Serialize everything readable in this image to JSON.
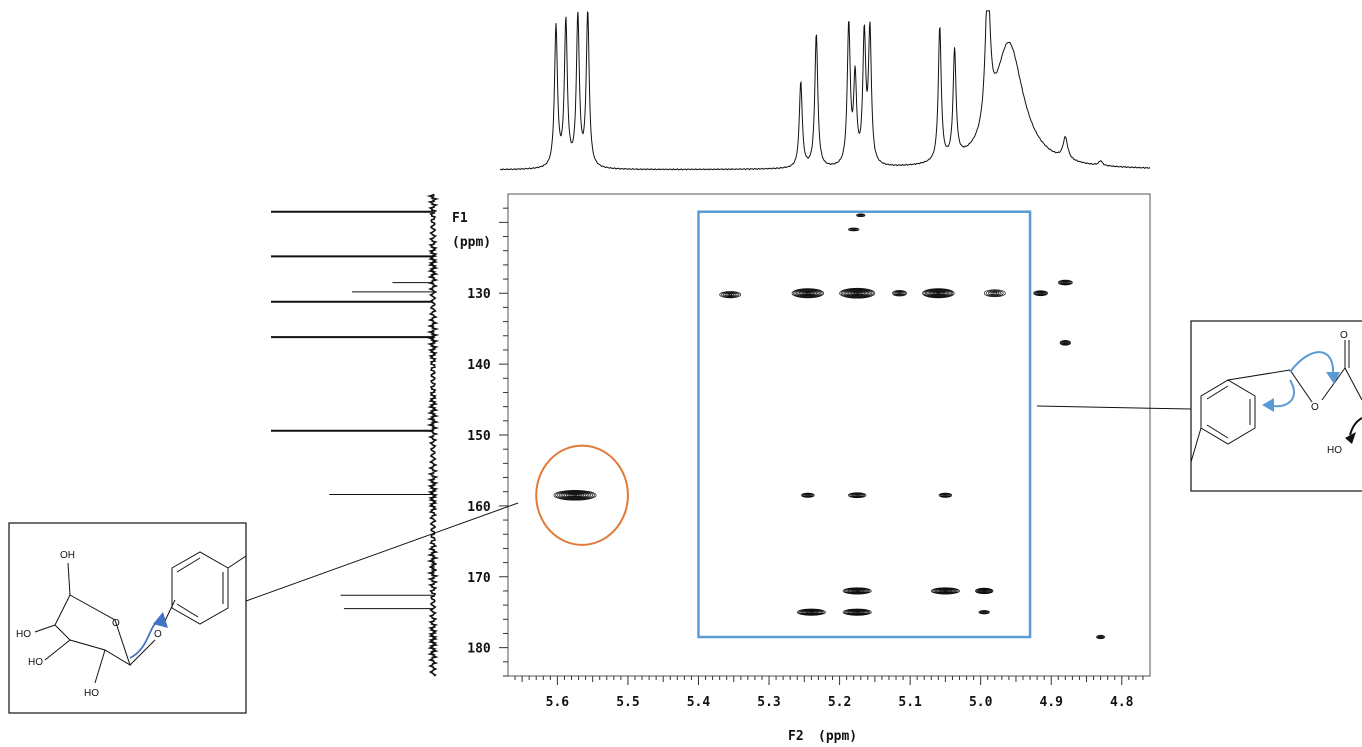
{
  "chart_data": {
    "type": "heatmap",
    "title": "",
    "xlabel": "F2 (ppm)",
    "ylabel": "F1 (ppm)",
    "x_axis_title": "F2",
    "x_axis_unit": "(ppm)",
    "y_axis_title": "F1",
    "y_axis_unit": "(ppm)",
    "xlim": [
      5.67,
      4.76
    ],
    "ylim": [
      116,
      184
    ],
    "x_ticks": [
      5.6,
      5.5,
      5.4,
      5.3,
      5.2,
      5.1,
      5.0,
      4.9,
      4.8
    ],
    "y_ticks": [
      130,
      140,
      150,
      160,
      170,
      180
    ],
    "grid": false,
    "cross_peaks": [
      {
        "f2": 5.575,
        "f1": 158.5,
        "w": 0.06,
        "h": 1.4,
        "strength": 1.0
      },
      {
        "f2": 5.355,
        "f1": 130.2,
        "w": 0.03,
        "h": 0.9,
        "strength": 0.5
      },
      {
        "f2": 5.245,
        "f1": 130.0,
        "w": 0.045,
        "h": 1.3,
        "strength": 0.9
      },
      {
        "f2": 5.175,
        "f1": 130.0,
        "w": 0.05,
        "h": 1.4,
        "strength": 1.0
      },
      {
        "f2": 5.115,
        "f1": 130.0,
        "w": 0.02,
        "h": 0.8,
        "strength": 0.5
      },
      {
        "f2": 5.06,
        "f1": 130.0,
        "w": 0.045,
        "h": 1.3,
        "strength": 1.0
      },
      {
        "f2": 4.98,
        "f1": 130.0,
        "w": 0.03,
        "h": 1.0,
        "strength": 0.4
      },
      {
        "f2": 4.915,
        "f1": 130.0,
        "w": 0.02,
        "h": 0.7,
        "strength": 0.6
      },
      {
        "f2": 4.88,
        "f1": 128.5,
        "w": 0.02,
        "h": 0.7,
        "strength": 0.6
      },
      {
        "f2": 4.88,
        "f1": 137.0,
        "w": 0.015,
        "h": 0.7,
        "strength": 0.6
      },
      {
        "f2": 5.245,
        "f1": 158.5,
        "w": 0.018,
        "h": 0.6,
        "strength": 0.5
      },
      {
        "f2": 5.175,
        "f1": 158.5,
        "w": 0.025,
        "h": 0.7,
        "strength": 0.6
      },
      {
        "f2": 5.05,
        "f1": 158.5,
        "w": 0.018,
        "h": 0.6,
        "strength": 0.5
      },
      {
        "f2": 5.24,
        "f1": 175.0,
        "w": 0.04,
        "h": 0.9,
        "strength": 0.9
      },
      {
        "f2": 5.175,
        "f1": 172.0,
        "w": 0.04,
        "h": 0.9,
        "strength": 0.9
      },
      {
        "f2": 5.175,
        "f1": 175.0,
        "w": 0.04,
        "h": 0.9,
        "strength": 0.9
      },
      {
        "f2": 5.05,
        "f1": 172.0,
        "w": 0.04,
        "h": 0.9,
        "strength": 0.9
      },
      {
        "f2": 4.995,
        "f1": 172.0,
        "w": 0.025,
        "h": 0.8,
        "strength": 0.8
      },
      {
        "f2": 4.995,
        "f1": 175.0,
        "w": 0.015,
        "h": 0.5,
        "strength": 0.5
      },
      {
        "f2": 5.18,
        "f1": 121.0,
        "w": 0.015,
        "h": 0.4,
        "strength": 0.4
      },
      {
        "f2": 5.17,
        "f1": 119.0,
        "w": 0.012,
        "h": 0.4,
        "strength": 0.4
      },
      {
        "f2": 4.83,
        "f1": 178.5,
        "w": 0.012,
        "h": 0.5,
        "strength": 0.4
      }
    ],
    "f2_projection_peaks": [
      {
        "ppm": 5.602,
        "height": 0.9,
        "width": 0.0025
      },
      {
        "ppm": 5.588,
        "height": 0.93,
        "width": 0.0025
      },
      {
        "ppm": 5.571,
        "height": 0.96,
        "width": 0.0025
      },
      {
        "ppm": 5.557,
        "height": 0.99,
        "width": 0.0025
      },
      {
        "ppm": 5.255,
        "height": 0.55,
        "width": 0.0025
      },
      {
        "ppm": 5.233,
        "height": 0.86,
        "width": 0.0025
      },
      {
        "ppm": 5.187,
        "height": 0.9,
        "width": 0.0025
      },
      {
        "ppm": 5.178,
        "height": 0.55,
        "width": 0.0025
      },
      {
        "ppm": 5.165,
        "height": 0.82,
        "width": 0.0025
      },
      {
        "ppm": 5.157,
        "height": 0.85,
        "width": 0.0025
      },
      {
        "ppm": 5.058,
        "height": 0.86,
        "width": 0.0025
      },
      {
        "ppm": 5.037,
        "height": 0.69,
        "width": 0.0025
      },
      {
        "ppm": 4.99,
        "height": 0.93,
        "width": 0.004
      },
      {
        "ppm": 4.96,
        "height": 0.8,
        "width": 0.025
      },
      {
        "ppm": 4.88,
        "height": 0.14,
        "width": 0.004
      },
      {
        "ppm": 4.83,
        "height": 0.03,
        "width": 0.003
      }
    ],
    "f1_projection_peaks": [
      {
        "ppm": 118.5,
        "height": 1.0
      },
      {
        "ppm": 124.8,
        "height": 1.0
      },
      {
        "ppm": 128.5,
        "height": 0.25
      },
      {
        "ppm": 129.8,
        "height": 0.5
      },
      {
        "ppm": 131.2,
        "height": 1.0
      },
      {
        "ppm": 136.2,
        "height": 1.0
      },
      {
        "ppm": 149.4,
        "height": 1.0
      },
      {
        "ppm": 158.4,
        "height": 0.64
      },
      {
        "ppm": 172.6,
        "height": 0.57
      },
      {
        "ppm": 174.5,
        "height": 0.55
      }
    ],
    "annotations": [
      {
        "type": "ellipse",
        "color": "#E07B39",
        "f2": [
          5.63,
          5.5
        ],
        "f1": [
          151.5,
          165.5
        ]
      },
      {
        "type": "rectangle",
        "color": "#5B9BD5",
        "f2": [
          5.4,
          4.93
        ],
        "f1": [
          118.5,
          178.5
        ]
      }
    ]
  },
  "structures": {
    "glucoside": {
      "labels": {
        "oh_top": "OH",
        "ho_1": "HO",
        "ho_2": "HO",
        "ho_3": "HO",
        "o_ring": "O",
        "o_link": "O"
      },
      "arrow_color": "#4472C4"
    },
    "ester": {
      "labels": {
        "o_carbonyl": "O",
        "o_ester": "O",
        "ho": "HO"
      },
      "arrow_color": "#5B9BD5"
    }
  }
}
